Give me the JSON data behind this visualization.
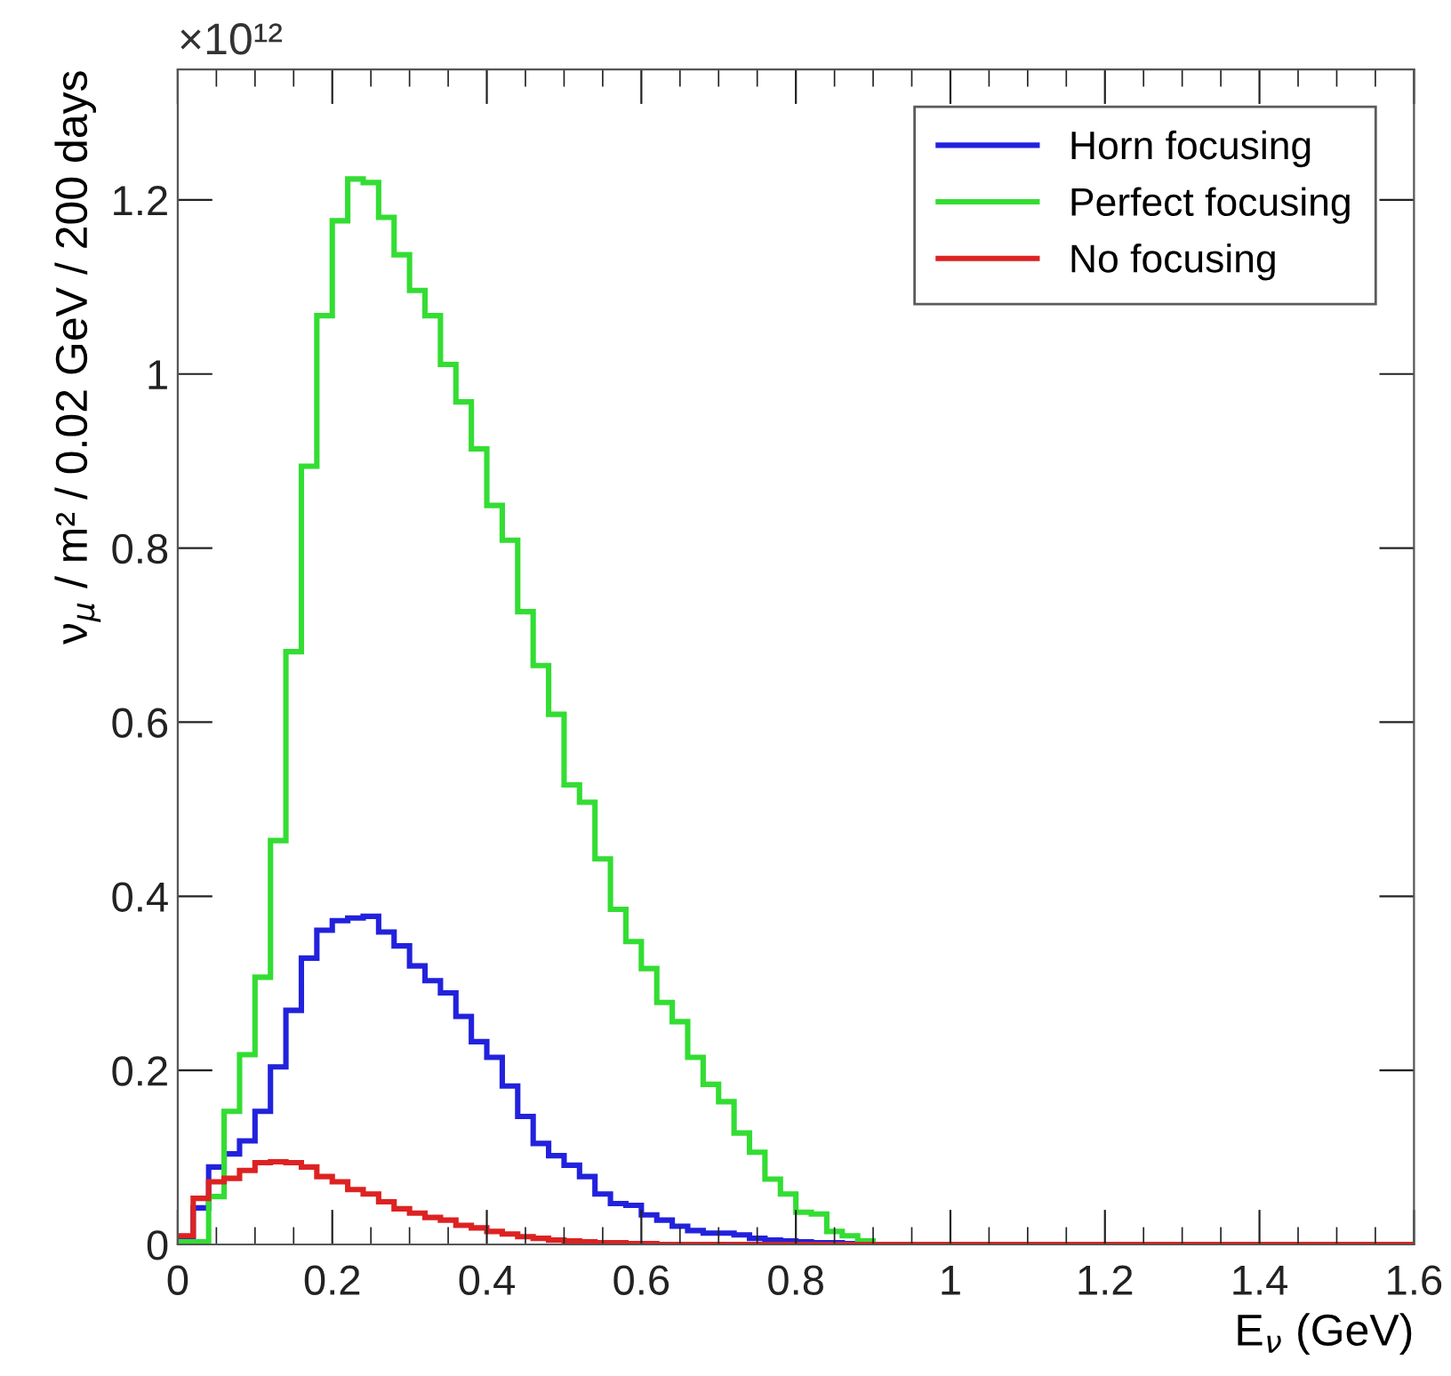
{
  "chart_data": {
    "type": "histogram",
    "xlabel": "E$_{ν}$ (GeV)",
    "ylabel": "ν$_{μ}$ / m² / 0.02 GeV / 200 days",
    "annotations": [
      "×10¹²"
    ],
    "bins": [
      0,
      0.02,
      0.04,
      0.06,
      0.08,
      0.1,
      0.12,
      0.14,
      0.16,
      0.18,
      0.2,
      0.22,
      0.24,
      0.26,
      0.28,
      0.3,
      0.32,
      0.34,
      0.36,
      0.38,
      0.4,
      0.42,
      0.44,
      0.46,
      0.48,
      0.5,
      0.52,
      0.54,
      0.56,
      0.58,
      0.6,
      0.62,
      0.64,
      0.66,
      0.68,
      0.7,
      0.72,
      0.74,
      0.76,
      0.78,
      0.8,
      0.82,
      0.84,
      0.86,
      0.88,
      0.9,
      0.92,
      0.94,
      0.96,
      0.98,
      1.0,
      1.02,
      1.04,
      1.06,
      1.08,
      1.1,
      1.12,
      1.14,
      1.16,
      1.18,
      1.2,
      1.22,
      1.24,
      1.26,
      1.28,
      1.3,
      1.32,
      1.34,
      1.36,
      1.38,
      1.4,
      1.42,
      1.44,
      1.46,
      1.48,
      1.5,
      1.52,
      1.54,
      1.56,
      1.58,
      1.6
    ],
    "series": [
      {
        "name": "Horn focusing",
        "color": "#2222dd",
        "values": [
          0.005,
          0.042,
          0.089,
          0.104,
          0.119,
          0.153,
          0.204,
          0.269,
          0.329,
          0.361,
          0.372,
          0.375,
          0.377,
          0.359,
          0.343,
          0.32,
          0.303,
          0.289,
          0.262,
          0.233,
          0.215,
          0.182,
          0.147,
          0.116,
          0.102,
          0.091,
          0.078,
          0.058,
          0.047,
          0.045,
          0.034,
          0.028,
          0.021,
          0.016,
          0.013,
          0.013,
          0.011,
          0.007,
          0.005,
          0.004,
          0.003,
          0.002,
          0.002,
          0.001,
          0,
          0,
          0,
          0,
          0,
          0,
          0,
          0,
          0,
          0,
          0,
          0,
          0,
          0,
          0,
          0,
          0,
          0,
          0,
          0,
          0,
          0,
          0,
          0,
          0,
          0,
          0,
          0,
          0,
          0,
          0,
          0,
          0,
          0,
          0,
          0
        ]
      },
      {
        "name": "Perfect focusing",
        "color": "#33dd33",
        "values": [
          0.003,
          0.003,
          0.055,
          0.153,
          0.218,
          0.307,
          0.464,
          0.681,
          0.894,
          1.067,
          1.176,
          1.224,
          1.22,
          1.18,
          1.137,
          1.096,
          1.067,
          1.011,
          0.968,
          0.914,
          0.849,
          0.809,
          0.727,
          0.665,
          0.609,
          0.528,
          0.508,
          0.443,
          0.385,
          0.348,
          0.317,
          0.278,
          0.256,
          0.215,
          0.184,
          0.164,
          0.128,
          0.106,
          0.075,
          0.058,
          0.037,
          0.035,
          0.015,
          0.01,
          0.004,
          0,
          0,
          0,
          0,
          0,
          0,
          0,
          0,
          0,
          0,
          0,
          0,
          0,
          0,
          0,
          0,
          0,
          0,
          0,
          0,
          0,
          0,
          0,
          0,
          0,
          0,
          0,
          0,
          0,
          0,
          0,
          0,
          0,
          0,
          0
        ]
      },
      {
        "name": "No focusing",
        "color": "#dd2222",
        "values": [
          0.01,
          0.053,
          0.072,
          0.076,
          0.085,
          0.094,
          0.095,
          0.094,
          0.089,
          0.078,
          0.072,
          0.063,
          0.058,
          0.049,
          0.041,
          0.036,
          0.031,
          0.028,
          0.022,
          0.019,
          0.015,
          0.012,
          0.009,
          0.007,
          0.005,
          0.004,
          0.003,
          0.002,
          0.002,
          0.001,
          0.001,
          0,
          0,
          0,
          0,
          0,
          0,
          0,
          0,
          0,
          0,
          0,
          0,
          0,
          0,
          0,
          0,
          0,
          0,
          0,
          0,
          0,
          0,
          0,
          0,
          0,
          0,
          0,
          0,
          0,
          0,
          0,
          0,
          0,
          0,
          0,
          0,
          0,
          0,
          0,
          0,
          0,
          0,
          0,
          0,
          0,
          0,
          0,
          0,
          0
        ]
      }
    ],
    "xlim": [
      0,
      1.6
    ],
    "xticks": [
      0,
      0.2,
      0.4,
      0.6,
      0.8,
      1,
      1.2,
      1.4,
      1.6
    ],
    "ylim": [
      0,
      1.35
    ],
    "yticks": [
      0,
      0.2,
      0.4,
      0.6,
      0.8,
      1,
      1.2
    ],
    "grid": false,
    "legend": "top right"
  }
}
